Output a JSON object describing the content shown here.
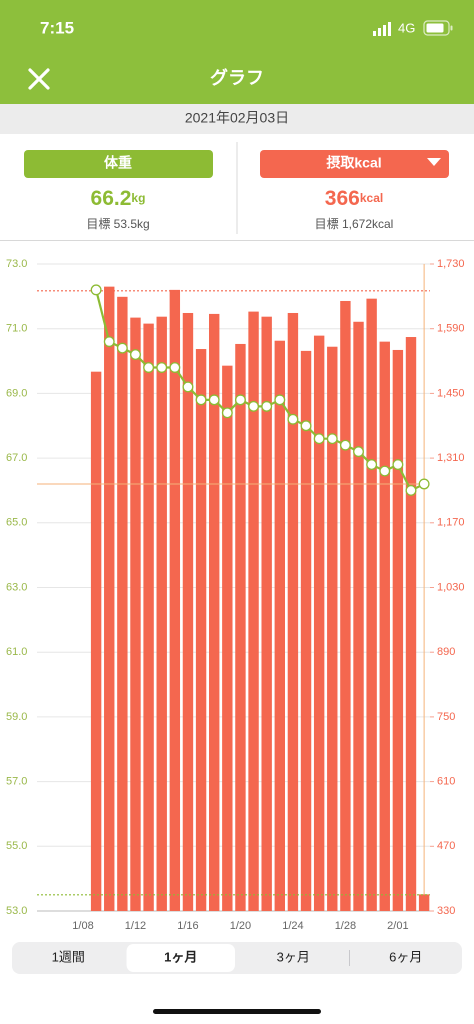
{
  "status_bar": {
    "time": "7:15",
    "network": "4G"
  },
  "header": {
    "title": "グラフ"
  },
  "date": "2021年02月03日",
  "panels": [
    {
      "button": "体重",
      "value": "66.2",
      "unit": "kg",
      "goal": "目標 53.5kg"
    },
    {
      "button": "摂取kcal",
      "value": "366",
      "unit": "kcal",
      "goal": "目標 1,672kcal"
    }
  ],
  "chart_data": {
    "type": "combo",
    "categories": [
      "1/08",
      null,
      null,
      null,
      "1/12",
      null,
      null,
      null,
      "1/16",
      null,
      null,
      null,
      "1/20",
      null,
      null,
      null,
      "1/24",
      null,
      null,
      null,
      "1/28",
      null,
      null,
      null,
      "2/01",
      null,
      null
    ],
    "series": [
      {
        "type": "bar",
        "axis": "y2",
        "color": "#f4674f",
        "values": [
          null,
          1497,
          1681,
          1659,
          1614,
          1601,
          1616,
          1674,
          1624,
          1546,
          1622,
          1510,
          1557,
          1627,
          1616,
          1564,
          1624,
          1542,
          1575,
          1551,
          1650,
          1605,
          1655,
          1562,
          1544,
          1572,
          366
        ]
      },
      {
        "type": "line",
        "axis": "y",
        "color": "#8dbb34",
        "values": [
          null,
          72.2,
          70.6,
          70.4,
          70.2,
          69.8,
          69.8,
          69.8,
          69.2,
          68.8,
          68.8,
          68.4,
          68.8,
          68.6,
          68.6,
          68.8,
          68.2,
          68.0,
          67.6,
          67.6,
          67.4,
          67.2,
          66.8,
          66.6,
          66.8,
          66.0,
          66.2
        ]
      }
    ],
    "ylim": [
      53,
      73
    ],
    "yticks": [
      {
        "value": 53,
        "label": "53.0"
      },
      {
        "value": 55,
        "label": "55.0"
      },
      {
        "value": 57,
        "label": "57.0"
      },
      {
        "value": 59,
        "label": "59.0"
      },
      {
        "value": 61,
        "label": "61.0"
      },
      {
        "value": 63,
        "label": "63.0"
      },
      {
        "value": 65,
        "label": "65.0"
      },
      {
        "value": 67,
        "label": "67.0"
      },
      {
        "value": 69,
        "label": "69.0"
      },
      {
        "value": 71,
        "label": "71.0"
      },
      {
        "value": 73,
        "label": "73.0"
      }
    ],
    "y2lim": [
      330,
      1730
    ],
    "y2ticks": [
      330,
      470,
      610,
      750,
      890,
      {
        "value": 1030,
        "label": "1,030"
      },
      {
        "value": 1170,
        "label": "1,170"
      },
      {
        "value": 1310,
        "label": "1,310"
      },
      {
        "value": 1450,
        "label": "1,450"
      },
      {
        "value": 1590,
        "label": "1,590"
      },
      {
        "value": 1730,
        "label": "1,730"
      }
    ],
    "grid": true,
    "reference_lines": [
      {
        "axis": "y",
        "value": 53.5,
        "color": "#8dbb34"
      },
      {
        "axis": "y2",
        "value": 1672,
        "color": "#f4674f"
      }
    ],
    "selected_index": 26,
    "crosshair_color": "#f5b27a"
  },
  "tabs": [
    "1週間",
    "1ヶ月",
    "3ヶ月",
    "6ヶ月"
  ],
  "selected_tab": 1
}
